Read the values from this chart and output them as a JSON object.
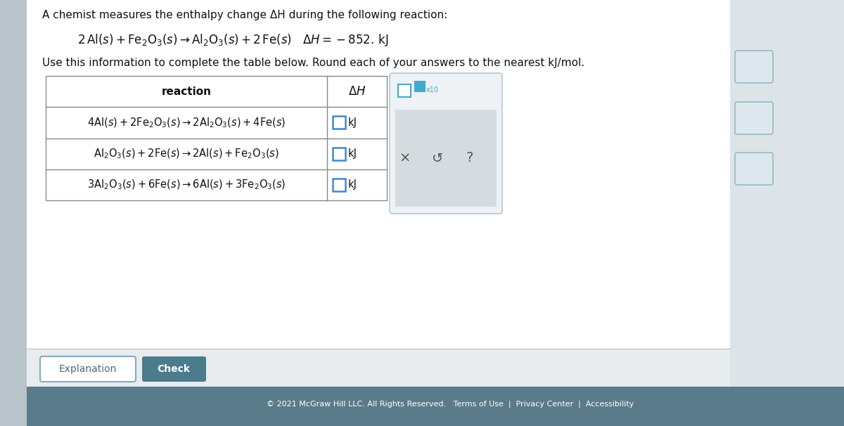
{
  "bg_main": "#dde4e8",
  "bg_white": "#ffffff",
  "bg_footer_btn": "#e8ecee",
  "footer_color": "#5a7c8a",
  "footer_text": "© 2021 McGraw Hill LLC. All Rights Reserved.   Terms of Use  |  Privacy Center  |  Accessibility",
  "sidebar_left_color": "#b8c4ca",
  "title": "A chemist measures the enthalpy change ΔH during the following reaction:",
  "instruction": "Use this information to complete the table below. Round each of your answers to the nearest kJ/mol.",
  "col_reaction_label": "reaction",
  "col_dH_label": "ΔH",
  "table_border": "#888888",
  "input_box_color": "#4488cc",
  "popup_bg": "#eef2f5",
  "popup_border": "#a8c0cc",
  "popup_gray": "#d4dce0",
  "popup_teal": "#44aacc",
  "explanation_text": "Explanation",
  "check_text": "Check",
  "check_bg": "#4a7c8c",
  "right_icon_bg": "#dce8ee",
  "right_icon_border": "#8ab0be"
}
